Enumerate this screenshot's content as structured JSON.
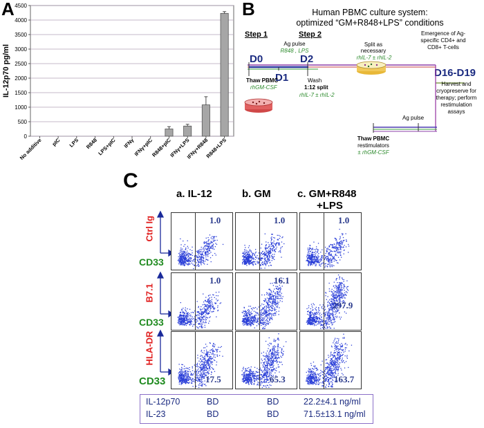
{
  "panel_a": {
    "letter": "A",
    "chart_data": {
      "type": "bar",
      "ylabel": "IL-12p70 pg/ml",
      "ylim": [
        0,
        4500
      ],
      "yticks": [
        0,
        500,
        1000,
        1500,
        2000,
        2500,
        3000,
        3500,
        4000,
        4500
      ],
      "categories": [
        "No additive",
        "pIC",
        "LPS",
        "R848",
        "LPS+pIC",
        "IFNγ",
        "IFNγ+pIC",
        "R848+pIC",
        "IFNγ+LPS",
        "IFNγ+R848",
        "R848+LPS"
      ],
      "values": [
        0,
        0,
        0,
        0,
        0,
        0,
        0,
        250,
        350,
        1080,
        4230
      ],
      "errors": [
        0,
        0,
        0,
        0,
        0,
        0,
        0,
        80,
        60,
        280,
        60
      ],
      "bar_color": "#a6a6a6"
    }
  },
  "panel_b": {
    "letter": "B",
    "title_line1": "Human PBMC culture system:",
    "title_line2": "optimized “GM+R848+LPS” conditions",
    "step1": "Step 1",
    "step2": "Step 2",
    "d0": "D0",
    "d1": "D1",
    "d2": "D2",
    "d16": "D16-D19",
    "ag_pulse_top": "Ag pulse",
    "ag_pulse_agents": "R848 , LPS",
    "thaw_pbmc": "Thaw PBMC",
    "rhgm_csf": "rhGM-CSF",
    "wash": "Wash",
    "split_1_12": "1:12 split",
    "rhil_top": "rhIL-7 ± rhIL-2",
    "split_as_necessary_1": "Split as",
    "split_as_necessary_2": "necessary",
    "rhil_mid": "rhIL-7 ± rhIL-2",
    "emergence_1": "Emergence  of Ag-",
    "emergence_2": "specific CD4+ and",
    "emergence_3": "CD8+ T-cells",
    "harvest_1": "Harvest and",
    "harvest_2": "cryopreserve for",
    "harvest_3": "therapy; perform",
    "harvest_4": "restimulation",
    "harvest_5": "assays",
    "ag_pulse_bottom": "Ag pulse",
    "thaw_restim_1": "Thaw PBMC",
    "thaw_restim_2": "restimulators",
    "thaw_restim_3": "± rhGM-CSF"
  },
  "panel_c": {
    "letter": "C",
    "col_a": "a. IL-12",
    "col_b": "b. GM",
    "col_c_1": "c. GM+R848",
    "col_c_2": "+LPS",
    "row1_label": "Ctrl Ig",
    "row2_label": "B7.1",
    "row3_label": "HLA-DR",
    "x_label": "CD33",
    "values": {
      "r1a": "1.0",
      "r1b": "1.0",
      "r1c": "1.0",
      "r2a": "1.0",
      "r2b": "16.1",
      "r2c": "297.9",
      "r3a": "17.5",
      "r3b": "65.3",
      "r3c": "163.7"
    },
    "cytokines": {
      "row1_name": "IL-12p70",
      "row1_a": "BD",
      "row1_b": "BD",
      "row1_c": "22.2±4.1 ng/ml",
      "row2_name": "IL-23",
      "row2_a": "BD",
      "row2_b": "BD",
      "row2_c": "71.5±13.1 ng/ml"
    },
    "dot_color": "#2b3fd8"
  }
}
